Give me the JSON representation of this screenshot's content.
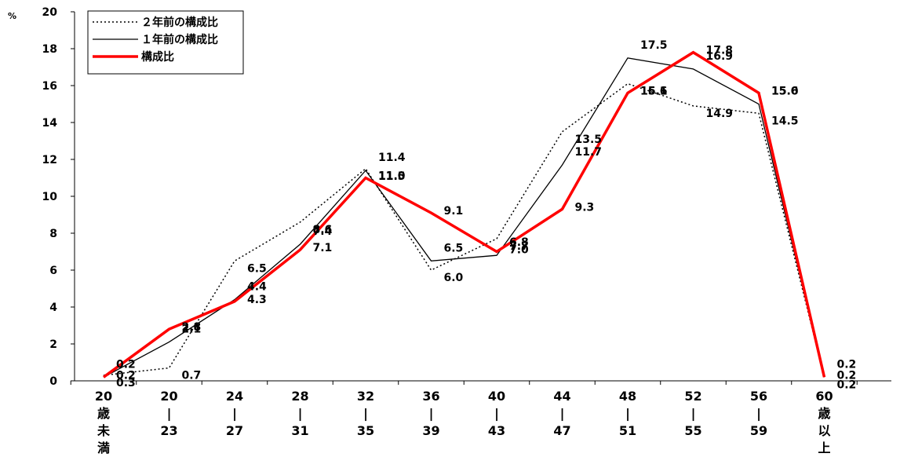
{
  "chart_data": {
    "type": "line",
    "ylabel": "%",
    "ylim": [
      0,
      20
    ],
    "yticks": [
      0,
      2,
      4,
      6,
      8,
      10,
      12,
      14,
      16,
      18,
      20
    ],
    "grid": false,
    "legend_position": "top-left",
    "categories": [
      [
        "20",
        "歳",
        "未",
        "満"
      ],
      [
        "20",
        "|",
        "23"
      ],
      [
        "24",
        "|",
        "27"
      ],
      [
        "28",
        "|",
        "31"
      ],
      [
        "32",
        "|",
        "35"
      ],
      [
        "36",
        "|",
        "39"
      ],
      [
        "40",
        "|",
        "43"
      ],
      [
        "44",
        "|",
        "47"
      ],
      [
        "48",
        "|",
        "51"
      ],
      [
        "52",
        "|",
        "55"
      ],
      [
        "56",
        "|",
        "59"
      ],
      [
        "60",
        "歳",
        "以",
        "上"
      ]
    ],
    "series": [
      {
        "name": "２年前の構成比",
        "style": "dotted",
        "color": "#000000",
        "values": [
          0.3,
          0.7,
          6.5,
          8.6,
          11.5,
          6.0,
          7.7,
          13.5,
          16.1,
          14.9,
          14.5,
          0.2
        ],
        "labels": [
          "0.3",
          "0.7",
          "6.5",
          "8.6",
          "11.5",
          "6.0",
          "7.7",
          "13.5",
          "16.1",
          "14.9",
          "14.5",
          "0.2"
        ]
      },
      {
        "name": "１年前の構成比",
        "style": "thin",
        "color": "#000000",
        "values": [
          0.2,
          2.1,
          4.4,
          7.4,
          11.4,
          6.5,
          6.8,
          11.7,
          17.5,
          16.9,
          15.0,
          0.2
        ],
        "labels": [
          "0.2",
          "2.1",
          "4.4",
          "7.4",
          "11.4",
          "6.5",
          "6.8",
          "11.7",
          "17.5",
          "16.9",
          "15.0",
          "0.2"
        ]
      },
      {
        "name": "構成比",
        "style": "thick",
        "color": "#ff0000",
        "values": [
          0.2,
          2.8,
          4.3,
          7.1,
          11.0,
          9.1,
          7.0,
          9.3,
          15.6,
          17.8,
          15.6,
          0.2
        ],
        "labels": [
          "0.2",
          "2.8",
          "4.3",
          "7.1",
          "11.0",
          "9.1",
          "7.0",
          "9.3",
          "15.6",
          "17.8",
          "15.6",
          "0.2"
        ]
      }
    ]
  }
}
